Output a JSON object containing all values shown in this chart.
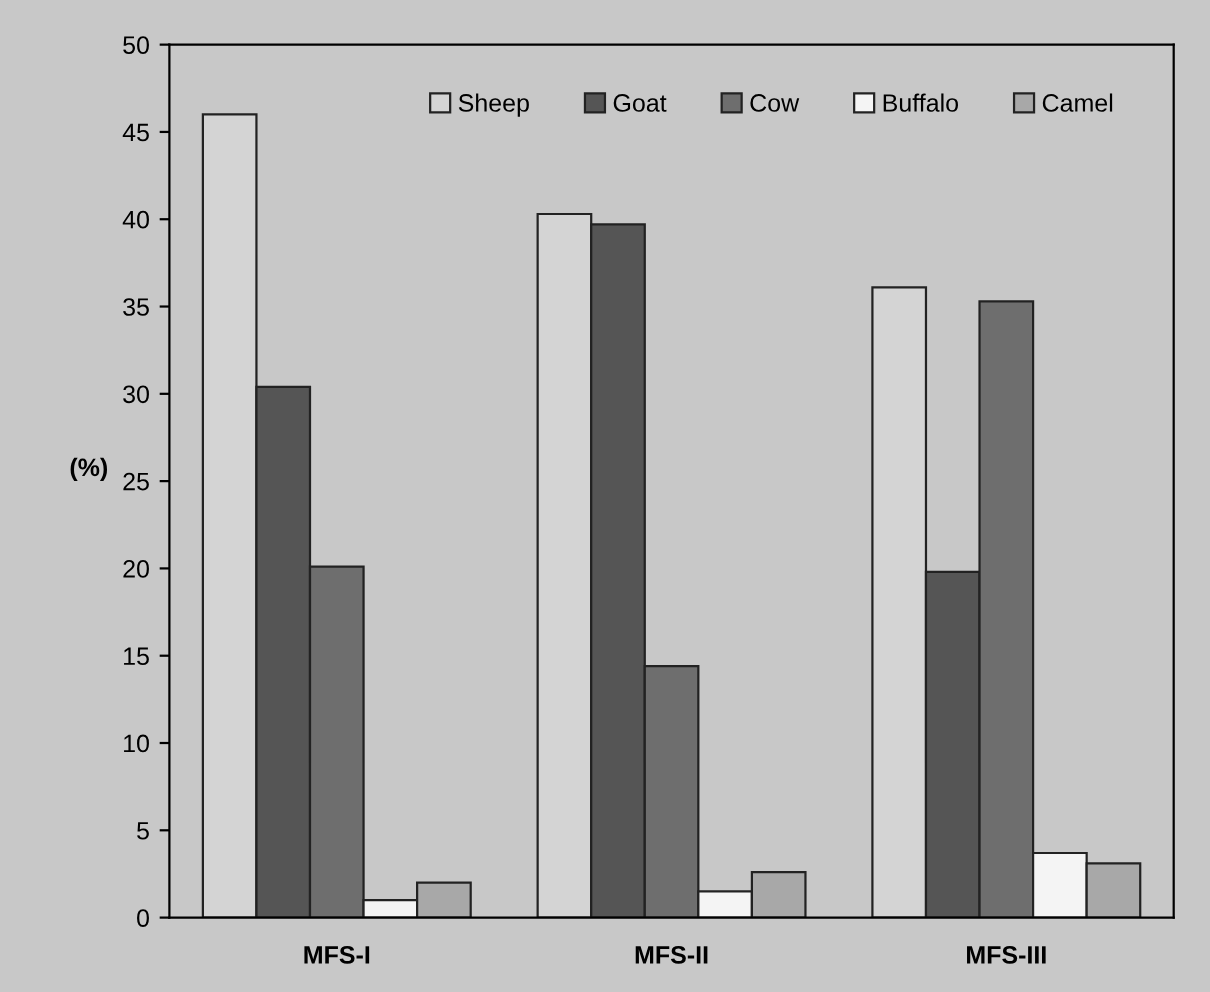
{
  "chart_data": {
    "type": "bar",
    "ylabel": "(%)",
    "categories": [
      "MFS-I",
      "MFS-II",
      "MFS-III"
    ],
    "series": [
      {
        "name": "Sheep",
        "color": "#d4d4d4",
        "values": [
          46.0,
          40.3,
          36.1
        ]
      },
      {
        "name": "Goat",
        "color": "#555555",
        "values": [
          30.4,
          39.7,
          19.8
        ]
      },
      {
        "name": "Cow",
        "color": "#6e6e6e",
        "values": [
          20.1,
          14.4,
          35.3
        ]
      },
      {
        "name": "Buffalo",
        "color": "#f4f4f4",
        "values": [
          1.0,
          1.5,
          3.7
        ]
      },
      {
        "name": "Camel",
        "color": "#a8a8a8",
        "values": [
          2.0,
          2.6,
          3.1
        ]
      }
    ],
    "ylim": [
      0,
      50
    ],
    "yticks": [
      0,
      5,
      10,
      15,
      20,
      25,
      30,
      35,
      40,
      45,
      50
    ],
    "grid": false,
    "legend": "top"
  }
}
